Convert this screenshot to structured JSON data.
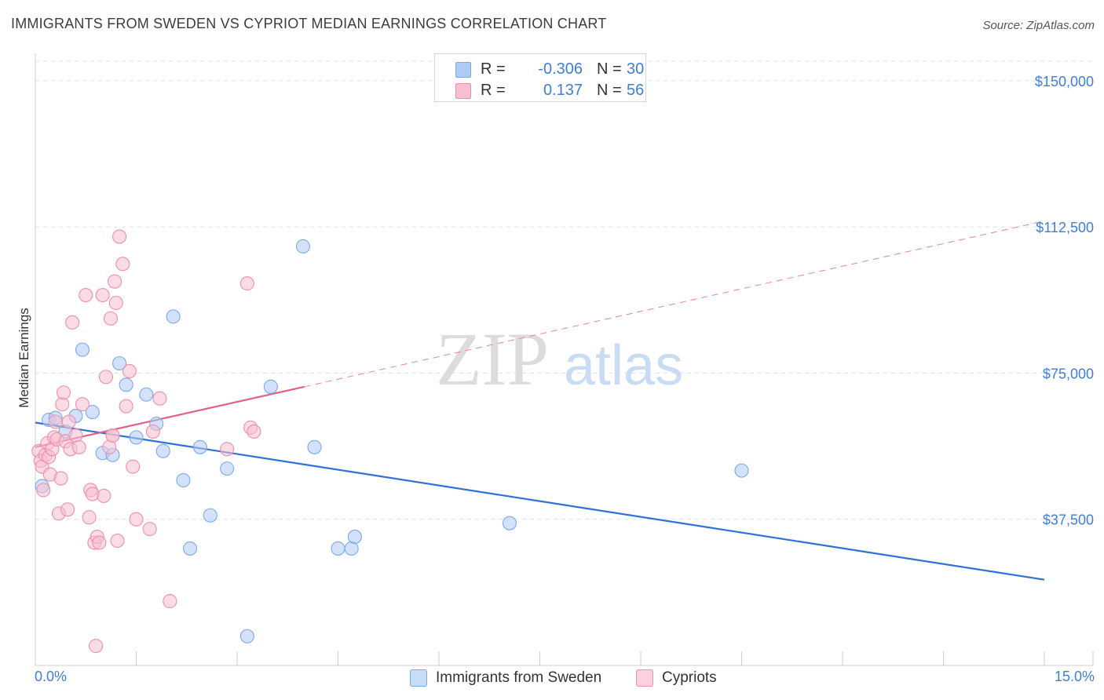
{
  "title": "IMMIGRANTS FROM SWEDEN VS CYPRIOT MEDIAN EARNINGS CORRELATION CHART",
  "source": "Source: ZipAtlas.com",
  "watermark": {
    "zip": "ZIP",
    "atlas": "atlas"
  },
  "legend": {
    "r_label": "R =",
    "n_label": "N =",
    "rows": [
      {
        "r": "-0.306",
        "n": "30",
        "color": "#aecbf5"
      },
      {
        "r": "0.137",
        "n": "56",
        "color": "#f8bfd0"
      }
    ]
  },
  "bottom_legend": [
    {
      "label": "Immigrants from Sweden",
      "color": "#aecbf5"
    },
    {
      "label": "Cypriots",
      "color": "#f8bfd0"
    }
  ],
  "chart_data": {
    "type": "scatter",
    "title": "IMMIGRANTS FROM SWEDEN VS CYPRIOT MEDIAN EARNINGS CORRELATION CHART",
    "xlabel": "",
    "ylabel": "Median Earnings",
    "xlim": [
      0,
      15
    ],
    "ylim": [
      0,
      155000
    ],
    "x_tick_labels": [
      "0.0%",
      "15.0%"
    ],
    "y_ticks": [
      37500,
      75000,
      112500,
      150000
    ],
    "y_tick_labels": [
      "$37,500",
      "$75,000",
      "$112,500",
      "$150,000"
    ],
    "series": [
      {
        "name": "Immigrants from Sweden",
        "color": "#7aaae8",
        "fill": "#aecbf5",
        "points": [
          [
            0.1,
            46000
          ],
          [
            0.2,
            63000
          ],
          [
            0.3,
            63500
          ],
          [
            0.45,
            60000
          ],
          [
            0.6,
            64000
          ],
          [
            0.7,
            81000
          ],
          [
            0.85,
            65000
          ],
          [
            1.0,
            54500
          ],
          [
            1.15,
            54000
          ],
          [
            1.25,
            77500
          ],
          [
            1.35,
            72000
          ],
          [
            1.5,
            58500
          ],
          [
            1.65,
            69500
          ],
          [
            1.8,
            62000
          ],
          [
            1.9,
            55000
          ],
          [
            2.05,
            89500
          ],
          [
            2.2,
            47500
          ],
          [
            2.3,
            30000
          ],
          [
            2.45,
            56000
          ],
          [
            2.6,
            38500
          ],
          [
            2.85,
            50500
          ],
          [
            3.15,
            7500
          ],
          [
            3.5,
            71500
          ],
          [
            3.98,
            107500
          ],
          [
            4.15,
            56000
          ],
          [
            4.5,
            30000
          ],
          [
            4.7,
            30000
          ],
          [
            4.75,
            33000
          ],
          [
            7.05,
            36500
          ],
          [
            10.5,
            50000
          ]
        ],
        "trendline": {
          "x0": 0,
          "y0": 62300,
          "x1": 15,
          "y1": 22000
        }
      },
      {
        "name": "Cypriots",
        "color": "#ee8fae",
        "fill": "#f8bfd0",
        "points": [
          [
            0.05,
            55000
          ],
          [
            0.08,
            52500
          ],
          [
            0.1,
            51000
          ],
          [
            0.12,
            45000
          ],
          [
            0.15,
            54000
          ],
          [
            0.18,
            57000
          ],
          [
            0.2,
            53500
          ],
          [
            0.22,
            49000
          ],
          [
            0.25,
            55500
          ],
          [
            0.28,
            58500
          ],
          [
            0.3,
            62500
          ],
          [
            0.32,
            58000
          ],
          [
            0.35,
            39000
          ],
          [
            0.38,
            48000
          ],
          [
            0.4,
            67000
          ],
          [
            0.42,
            70000
          ],
          [
            0.45,
            57500
          ],
          [
            0.48,
            40000
          ],
          [
            0.5,
            62500
          ],
          [
            0.52,
            55500
          ],
          [
            0.55,
            88000
          ],
          [
            0.6,
            59000
          ],
          [
            0.65,
            56000
          ],
          [
            0.7,
            67000
          ],
          [
            0.75,
            95000
          ],
          [
            0.8,
            38000
          ],
          [
            0.82,
            45000
          ],
          [
            0.85,
            44000
          ],
          [
            0.88,
            31500
          ],
          [
            0.9,
            5000
          ],
          [
            0.92,
            33000
          ],
          [
            0.95,
            31500
          ],
          [
            1.0,
            95000
          ],
          [
            1.02,
            43500
          ],
          [
            1.05,
            74000
          ],
          [
            1.1,
            56000
          ],
          [
            1.12,
            89000
          ],
          [
            1.15,
            59000
          ],
          [
            1.18,
            98500
          ],
          [
            1.2,
            93000
          ],
          [
            1.22,
            32000
          ],
          [
            1.25,
            110000
          ],
          [
            1.3,
            103000
          ],
          [
            1.35,
            66500
          ],
          [
            1.4,
            75500
          ],
          [
            1.45,
            51000
          ],
          [
            1.5,
            37500
          ],
          [
            1.7,
            35000
          ],
          [
            1.75,
            60000
          ],
          [
            1.85,
            68500
          ],
          [
            2.0,
            16500
          ],
          [
            2.85,
            55500
          ],
          [
            3.15,
            98000
          ],
          [
            3.2,
            61000
          ],
          [
            3.25,
            60000
          ],
          [
            1.15,
            59000
          ]
        ],
        "trendline": {
          "x0": 0,
          "y0": 56000,
          "x1": 4.0,
          "y1": 71500,
          "dash_x1": 15,
          "dash_y1": 114000
        }
      }
    ]
  }
}
